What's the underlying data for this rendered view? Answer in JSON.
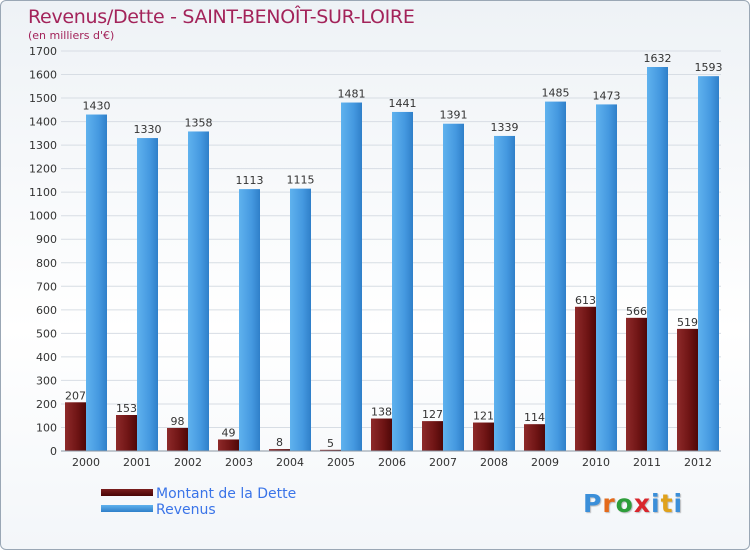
{
  "header": {
    "title": "Revenus/Dette - SAINT-BENOÎT-SUR-LOIRE",
    "subtitle": "(en milliers d'€)"
  },
  "colors": {
    "dette": "#7a1e1e",
    "revenus": "#4aa2e6",
    "grid": "#d7dde4",
    "axis_text": "#333333"
  },
  "legend": {
    "items": [
      {
        "label": "Montant de la Dette",
        "color": "#5c0d0d"
      },
      {
        "label": "Revenus",
        "color": "#3f8fd8"
      }
    ]
  },
  "logo": {
    "text": "Proxiti",
    "letter_colors": [
      "#3b8fd9",
      "#e46a1a",
      "#2e9e3a",
      "#d9262c",
      "#3b8fd9",
      "#e0a21c",
      "#3b8fd9"
    ]
  },
  "chart_data": {
    "type": "bar",
    "categories": [
      "2000",
      "2001",
      "2002",
      "2003",
      "2004",
      "2005",
      "2006",
      "2007",
      "2008",
      "2009",
      "2010",
      "2011",
      "2012"
    ],
    "series": [
      {
        "name": "Montant de la Dette",
        "values": [
          207,
          153,
          98,
          49,
          8,
          5,
          138,
          127,
          121,
          114,
          613,
          566,
          519
        ]
      },
      {
        "name": "Revenus",
        "values": [
          1430,
          1330,
          1358,
          1113,
          1115,
          1481,
          1441,
          1391,
          1339,
          1485,
          1473,
          1632,
          1593
        ]
      }
    ],
    "ylim": [
      0,
      1700
    ],
    "yticks": [
      0,
      100,
      200,
      300,
      400,
      500,
      600,
      700,
      800,
      900,
      1000,
      1100,
      1200,
      1300,
      1400,
      1500,
      1600,
      1700
    ],
    "grid": true
  }
}
